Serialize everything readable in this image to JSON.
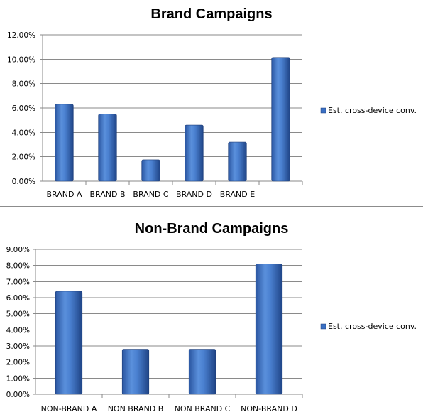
{
  "chart_data": [
    {
      "type": "bar",
      "title": "Brand Campaigns",
      "categories": [
        "BRAND A",
        "BRAND B",
        "BRAND C",
        "BRAND D",
        "BRAND E",
        ""
      ],
      "series": [
        {
          "name": "Est. cross-device conv.",
          "values": [
            6.3,
            5.5,
            1.75,
            4.6,
            3.2,
            10.15
          ]
        }
      ],
      "ylim": [
        0,
        12
      ],
      "yticks": [
        "0.00%",
        "2.00%",
        "4.00%",
        "6.00%",
        "8.00%",
        "10.00%",
        "12.00%"
      ],
      "ytick_values": [
        0,
        2,
        4,
        6,
        8,
        10,
        12
      ],
      "grid": true,
      "legend": "right",
      "bar_color": "#3a70c4"
    },
    {
      "type": "bar",
      "title": "Non-Brand Campaigns",
      "categories": [
        "NON-BRAND A",
        "NON BRAND B",
        "NON BRAND C",
        "NON-BRAND D"
      ],
      "series": [
        {
          "name": "Est. cross-device conv.",
          "values": [
            6.4,
            2.8,
            2.8,
            8.1
          ]
        }
      ],
      "ylim": [
        0,
        9
      ],
      "yticks": [
        "0.00%",
        "1.00%",
        "2.00%",
        "3.00%",
        "4.00%",
        "5.00%",
        "6.00%",
        "7.00%",
        "8.00%",
        "9.00%"
      ],
      "ytick_values": [
        0,
        1,
        2,
        3,
        4,
        5,
        6,
        7,
        8,
        9
      ],
      "grid": true,
      "legend": "right",
      "bar_color": "#3a70c4"
    }
  ]
}
